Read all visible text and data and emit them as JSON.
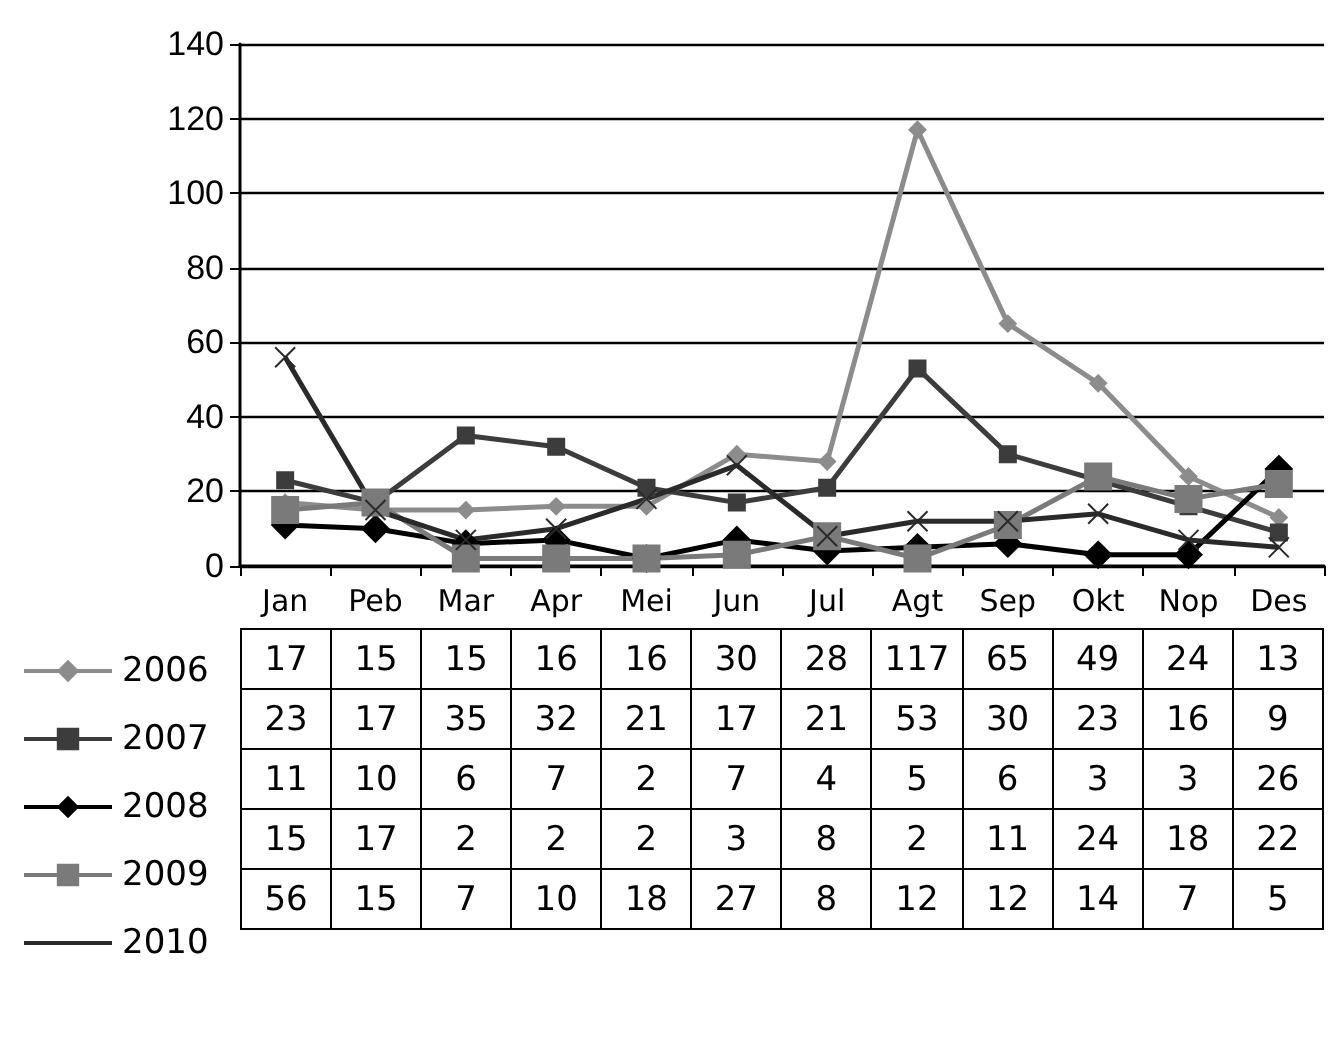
{
  "chart_data": {
    "type": "line",
    "categories": [
      "Jan",
      "Peb",
      "Mar",
      "Apr",
      "Mei",
      "Jun",
      "Jul",
      "Agt",
      "Sep",
      "Okt",
      "Nop",
      "Des"
    ],
    "series": [
      {
        "name": "2006",
        "color": "#8c8c8c",
        "marker": "diamond",
        "values": [
          17,
          15,
          15,
          16,
          16,
          30,
          28,
          117,
          65,
          49,
          24,
          13
        ]
      },
      {
        "name": "2007",
        "color": "#3c3c3c",
        "marker": "square",
        "values": [
          23,
          17,
          35,
          32,
          21,
          17,
          21,
          53,
          30,
          23,
          16,
          9
        ]
      },
      {
        "name": "2008",
        "color": "#000000",
        "marker": "diamond",
        "values": [
          11,
          10,
          6,
          7,
          2,
          7,
          4,
          5,
          6,
          3,
          3,
          26
        ]
      },
      {
        "name": "2009",
        "color": "#7a7a7a",
        "marker": "square",
        "values": [
          15,
          17,
          2,
          2,
          2,
          3,
          8,
          2,
          11,
          24,
          18,
          22
        ]
      },
      {
        "name": "2010",
        "color": "#2a2a2a",
        "marker": "cross",
        "values": [
          56,
          15,
          7,
          10,
          18,
          27,
          8,
          12,
          12,
          14,
          7,
          5
        ]
      }
    ],
    "ylim": [
      0,
      140
    ],
    "yticks": [
      0,
      20,
      40,
      60,
      80,
      100,
      120,
      140
    ],
    "grid": "y",
    "legend": "bottom left",
    "data_labels": true
  }
}
